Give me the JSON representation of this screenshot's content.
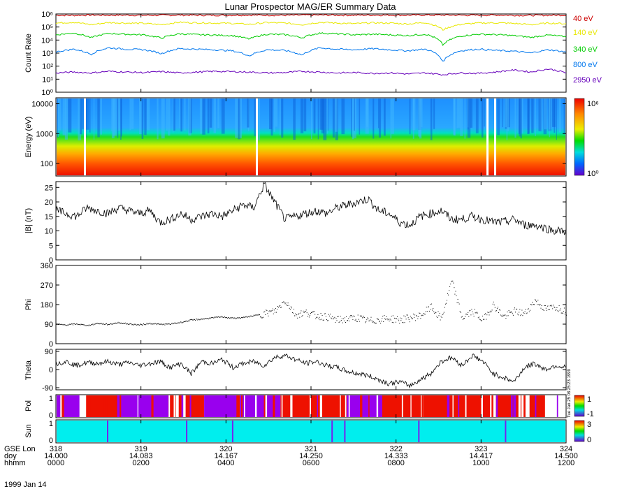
{
  "title": "Lunar Prospector MAG/ER Summary Data",
  "date_label": "1999 Jan 14",
  "stamp": "Tue Jan 25 08:25:23 1999",
  "chart_data": [
    {
      "type": "line",
      "name": "count_rate",
      "ylabel": "Count Rate",
      "yscale": "log",
      "ylim": [
        1,
        1000000
      ],
      "ytick_labels": [
        "10⁰",
        "10¹",
        "10²",
        "10³",
        "10⁴",
        "10⁵",
        "10⁶"
      ],
      "series": [
        {
          "name": "40 eV",
          "color": "#cc0000",
          "values": [
            800000,
            780000,
            820000,
            800000,
            810000,
            790000,
            800000,
            820000,
            800000,
            790000,
            810000,
            820000,
            800000,
            790000,
            820000,
            830000,
            810000,
            800000,
            820000,
            810000,
            800000,
            830000,
            820000,
            810000,
            800000,
            820000,
            790000,
            780000,
            800000,
            810000
          ]
        },
        {
          "name": "140 eV",
          "color": "#e8e800",
          "values": [
            200000,
            230000,
            150000,
            220000,
            200000,
            190000,
            150000,
            230000,
            210000,
            200000,
            190000,
            160000,
            220000,
            200000,
            150000,
            230000,
            200000,
            180000,
            210000,
            200000,
            170000,
            220000,
            60000,
            160000,
            200000,
            210000,
            190000,
            150000,
            200000,
            180000
          ]
        },
        {
          "name": "340 eV",
          "color": "#00cc00",
          "values": [
            25000,
            35000,
            15000,
            32000,
            28000,
            25000,
            14000,
            30000,
            26000,
            24000,
            22000,
            12000,
            28000,
            26000,
            15000,
            34000,
            30000,
            25000,
            28000,
            25000,
            22000,
            28000,
            4000,
            20000,
            28000,
            26000,
            22000,
            16000,
            24000,
            18000
          ]
        },
        {
          "name": "800 eV",
          "color": "#0077ee",
          "values": [
            1200,
            2000,
            800,
            2500,
            2000,
            1800,
            900,
            2200,
            2000,
            1800,
            1500,
            600,
            1800,
            1600,
            700,
            2500,
            2000,
            1800,
            2200,
            1800,
            1500,
            2000,
            200,
            1500,
            2000,
            1600,
            1400,
            1000,
            1800,
            1200
          ]
        },
        {
          "name": "2950 eV",
          "color": "#6600bb",
          "values": [
            30,
            35,
            30,
            40,
            35,
            32,
            38,
            30,
            35,
            40,
            38,
            35,
            30,
            32,
            40,
            35,
            30,
            32,
            28,
            30,
            25,
            30,
            22,
            30,
            28,
            35,
            50,
            35,
            60,
            30
          ]
        }
      ]
    },
    {
      "type": "heatmap",
      "name": "energy_spectrogram",
      "ylabel": "Energy (eV)",
      "yscale": "log",
      "ytick_labels": [
        "100",
        "1000",
        "10000"
      ],
      "ytick_values": [
        100,
        1000,
        10000
      ],
      "ylim": [
        40,
        15000
      ],
      "colorbar_labels": [
        "10⁰",
        "10⁶"
      ]
    },
    {
      "type": "line",
      "name": "b_magnitude",
      "ylabel": "|B| (nT)",
      "ylim": [
        0,
        27
      ],
      "ytick_labels": [
        "0",
        "5",
        "10",
        "15",
        "20",
        "25"
      ],
      "ytick_values": [
        0,
        5,
        10,
        15,
        20,
        25
      ],
      "values": [
        17,
        16,
        15,
        18,
        17,
        16,
        18,
        17,
        16,
        17,
        13,
        14,
        16,
        14,
        15,
        16,
        15,
        17,
        19,
        18,
        26,
        20,
        14,
        15,
        16,
        17,
        16,
        18,
        19,
        20,
        21,
        17,
        16,
        13,
        12,
        15,
        16,
        17,
        14,
        14,
        15,
        14,
        13,
        13,
        14,
        12,
        12,
        11,
        10,
        10
      ]
    },
    {
      "type": "scatter",
      "name": "phi",
      "ylabel": "Phi",
      "ylim": [
        0,
        360
      ],
      "ytick_labels": [
        "0",
        "90",
        "180",
        "270",
        "360"
      ],
      "ytick_values": [
        0,
        90,
        180,
        270,
        360
      ],
      "values": [
        90,
        88,
        92,
        85,
        95,
        90,
        98,
        92,
        88,
        95,
        90,
        92,
        100,
        110,
        115,
        120,
        125,
        118,
        122,
        130,
        140,
        150,
        200,
        135,
        145,
        130,
        125,
        110,
        115,
        120,
        105,
        112,
        118,
        110,
        120,
        130,
        170,
        115,
        290,
        120,
        150,
        110,
        180,
        125,
        150,
        140,
        200,
        160,
        170,
        150
      ]
    },
    {
      "type": "line",
      "name": "theta",
      "ylabel": "Theta",
      "ylim": [
        -90,
        90
      ],
      "ytick_labels": [
        "-90",
        "0",
        "90"
      ],
      "ytick_values": [
        -90,
        0,
        90
      ],
      "values": [
        30,
        40,
        20,
        35,
        30,
        40,
        25,
        35,
        20,
        30,
        40,
        10,
        30,
        -20,
        40,
        30,
        50,
        10,
        30,
        40,
        20,
        60,
        70,
        50,
        30,
        40,
        20,
        10,
        -10,
        -20,
        -30,
        -50,
        -70,
        -60,
        -80,
        -50,
        -20,
        40,
        60,
        20,
        70,
        40,
        -20,
        -40,
        -60,
        10,
        30,
        0,
        20,
        10
      ]
    },
    {
      "type": "heatmap",
      "name": "pol",
      "ylabel": "Pol",
      "ytick_labels": [
        "0",
        "1"
      ],
      "colorbar_labels": [
        "1",
        "-1"
      ]
    },
    {
      "type": "heatmap",
      "name": "sun",
      "ylabel": "Sun",
      "ytick_labels": [
        "0",
        "1"
      ],
      "colorbar_labels": [
        "3",
        "0"
      ]
    }
  ],
  "xaxis": {
    "rows": [
      {
        "label": "GSE Lon",
        "ticks": [
          "318",
          "319",
          "320",
          "321",
          "322",
          "323",
          "324"
        ]
      },
      {
        "label": "doy",
        "ticks": [
          "14.000",
          "14.083",
          "14.167",
          "14.250",
          "14.333",
          "14.417",
          "14.500"
        ]
      },
      {
        "label": "hhmm",
        "ticks": [
          "0000",
          "0200",
          "0400",
          "0600",
          "0800",
          "1000",
          "1200"
        ]
      }
    ]
  }
}
